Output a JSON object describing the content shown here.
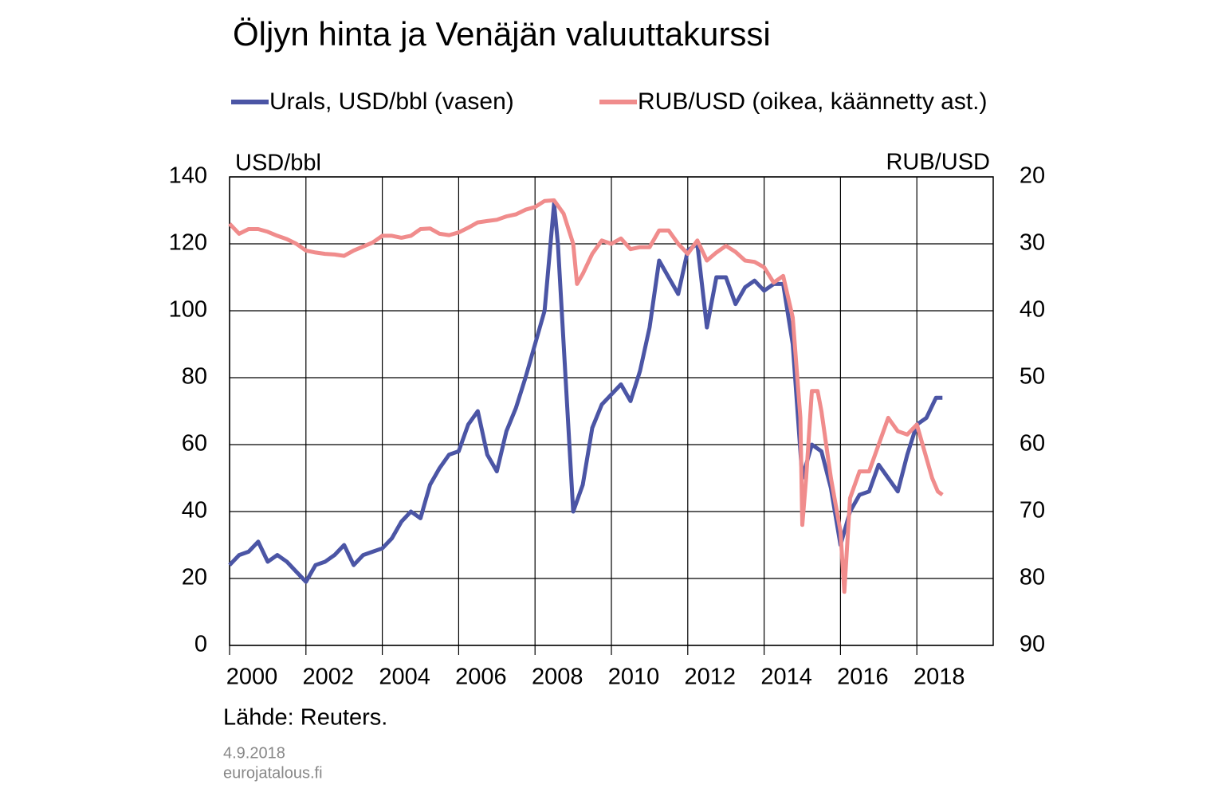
{
  "chart_data": {
    "type": "line",
    "title": "Öljyn hinta ja Venäjän valuuttakurssi",
    "ylabel": "USD/bbl",
    "y2label": "RUB/USD",
    "source": "Lähde:  Reuters.",
    "date": "4.9.2018",
    "site": "eurojatalous.fi",
    "xlim": [
      2000,
      2020
    ],
    "xticks": [
      2000,
      2002,
      2004,
      2006,
      2008,
      2010,
      2012,
      2014,
      2016,
      2018
    ],
    "ylim": [
      0,
      140
    ],
    "yticks": [
      0,
      20,
      40,
      60,
      80,
      100,
      120,
      140
    ],
    "y2lim": [
      90,
      20
    ],
    "y2ticks": [
      20,
      30,
      40,
      50,
      60,
      70,
      80,
      90
    ],
    "grid": true,
    "series": [
      {
        "name": "Urals, USD/bbl (vasen)",
        "color": "#4b55a5",
        "x": [
          2000.0,
          2000.25,
          2000.5,
          2000.75,
          2001.0,
          2001.25,
          2001.5,
          2001.75,
          2002.0,
          2002.25,
          2002.5,
          2002.75,
          2003.0,
          2003.25,
          2003.5,
          2003.75,
          2004.0,
          2004.25,
          2004.5,
          2004.75,
          2005.0,
          2005.25,
          2005.5,
          2005.75,
          2006.0,
          2006.25,
          2006.5,
          2006.75,
          2007.0,
          2007.25,
          2007.5,
          2007.75,
          2008.0,
          2008.25,
          2008.5,
          2008.6,
          2008.75,
          2009.0,
          2009.25,
          2009.5,
          2009.75,
          2010.0,
          2010.25,
          2010.5,
          2010.75,
          2011.0,
          2011.25,
          2011.5,
          2011.75,
          2012.0,
          2012.25,
          2012.5,
          2012.75,
          2013.0,
          2013.25,
          2013.5,
          2013.75,
          2014.0,
          2014.25,
          2014.5,
          2014.75,
          2015.0,
          2015.25,
          2015.5,
          2015.75,
          2016.0,
          2016.25,
          2016.5,
          2016.75,
          2017.0,
          2017.25,
          2017.5,
          2017.75,
          2018.0,
          2018.25,
          2018.5,
          2018.67
        ],
        "values": [
          24,
          27,
          28,
          31,
          25,
          27,
          25,
          22,
          19,
          24,
          25,
          27,
          30,
          24,
          27,
          28,
          29,
          32,
          37,
          40,
          38,
          48,
          53,
          57,
          58,
          66,
          70,
          57,
          52,
          64,
          71,
          80,
          90,
          100,
          132,
          120,
          90,
          40,
          48,
          65,
          72,
          75,
          78,
          73,
          82,
          95,
          115,
          110,
          105,
          118,
          120,
          95,
          110,
          110,
          102,
          107,
          109,
          106,
          108,
          108,
          90,
          50,
          60,
          58,
          47,
          30,
          40,
          45,
          46,
          54,
          50,
          46,
          57,
          66,
          68,
          74,
          74
        ]
      },
      {
        "name": "RUB/USD (oikea, käännetty ast.)",
        "color": "#f08c8c",
        "axis": "y2",
        "x": [
          2000.0,
          2000.25,
          2000.5,
          2000.75,
          2001.0,
          2001.25,
          2001.5,
          2001.75,
          2002.0,
          2002.25,
          2002.5,
          2002.75,
          2003.0,
          2003.25,
          2003.5,
          2003.75,
          2004.0,
          2004.25,
          2004.5,
          2004.75,
          2005.0,
          2005.25,
          2005.5,
          2005.75,
          2006.0,
          2006.25,
          2006.5,
          2006.75,
          2007.0,
          2007.25,
          2007.5,
          2007.75,
          2008.0,
          2008.25,
          2008.5,
          2008.75,
          2009.0,
          2009.1,
          2009.25,
          2009.5,
          2009.75,
          2010.0,
          2010.25,
          2010.5,
          2010.75,
          2011.0,
          2011.25,
          2011.5,
          2011.75,
          2012.0,
          2012.25,
          2012.5,
          2012.75,
          2013.0,
          2013.25,
          2013.5,
          2013.75,
          2014.0,
          2014.25,
          2014.5,
          2014.75,
          2014.95,
          2015.0,
          2015.1,
          2015.25,
          2015.4,
          2015.5,
          2015.75,
          2016.0,
          2016.1,
          2016.25,
          2016.5,
          2016.75,
          2017.0,
          2017.25,
          2017.5,
          2017.75,
          2018.0,
          2018.25,
          2018.4,
          2018.55,
          2018.67
        ],
        "values": [
          27,
          28.5,
          27.8,
          27.8,
          28.2,
          28.8,
          29.3,
          30.0,
          31.0,
          31.3,
          31.5,
          31.6,
          31.8,
          31.0,
          30.4,
          29.8,
          28.8,
          28.8,
          29.1,
          28.8,
          27.8,
          27.7,
          28.5,
          28.7,
          28.3,
          27.6,
          26.8,
          26.6,
          26.4,
          25.9,
          25.6,
          24.9,
          24.5,
          23.6,
          23.5,
          25.5,
          30,
          36,
          34.5,
          31.5,
          29.5,
          30,
          29.2,
          30.8,
          30.5,
          30.5,
          28.0,
          28.0,
          30.0,
          31.5,
          29.5,
          32.5,
          31.3,
          30.3,
          31.2,
          32.5,
          32.7,
          33.5,
          35.8,
          34.8,
          41.0,
          56,
          72,
          65,
          52,
          52,
          55,
          65,
          73,
          82,
          68,
          64,
          64,
          60,
          56,
          58,
          58.5,
          57,
          62,
          65,
          67,
          67.5
        ]
      }
    ]
  }
}
